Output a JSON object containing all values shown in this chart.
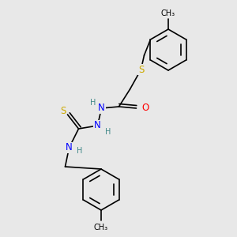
{
  "background_color": "#e8e8e8",
  "atom_colors": {
    "S": "#ccaa00",
    "O": "#ff0000",
    "N": "#0000ff",
    "C": "#000000",
    "H": "#408888"
  },
  "bond_color": "#000000",
  "bond_width": 1.2,
  "fig_width": 3.0,
  "fig_height": 3.0,
  "dpi": 100
}
